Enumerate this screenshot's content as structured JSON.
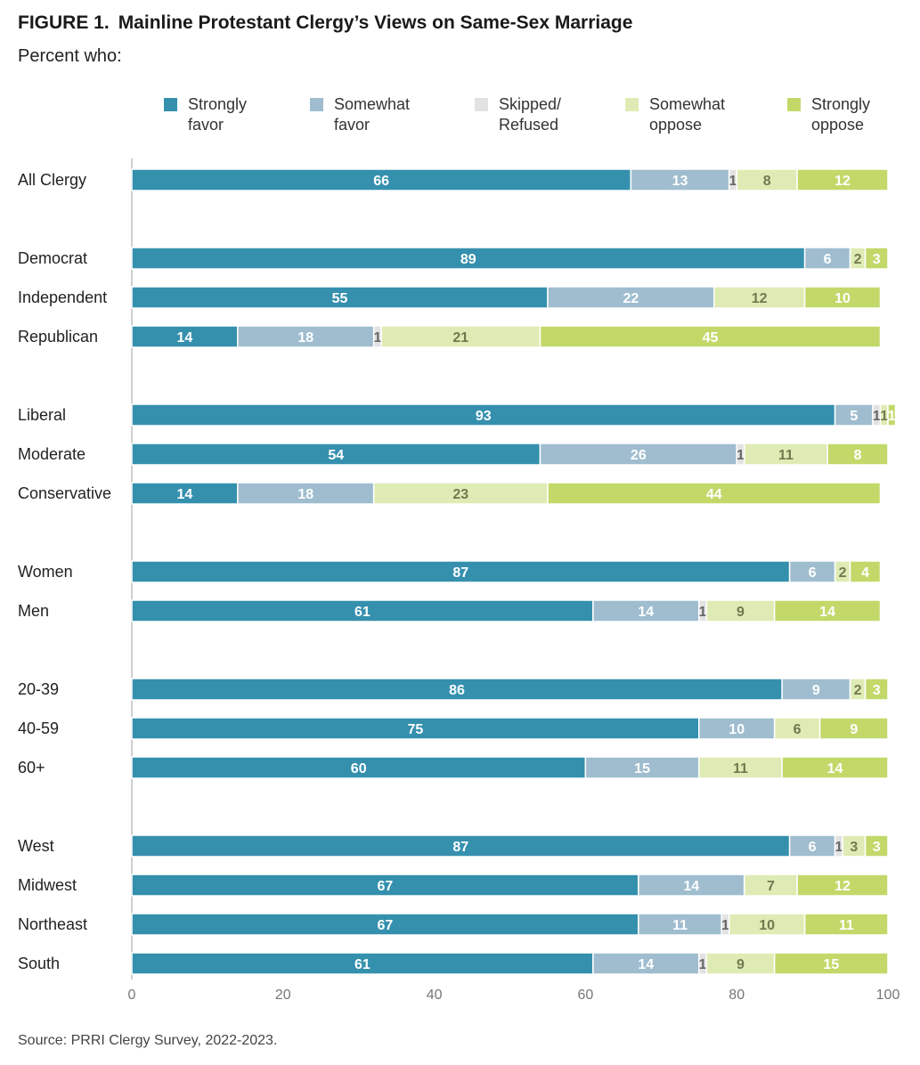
{
  "header": {
    "figure_label": "FIGURE 1.",
    "title": "Mainline Protestant Clergy’s Views on Same-Sex Marriage",
    "subtitle": "Percent who:"
  },
  "source": "Source: PRRI Clergy Survey, 2022-2023.",
  "colors": {
    "strongly_favor": "#3590ae",
    "somewhat_favor": "#9fbdcf",
    "skipped": "#e2e2e2",
    "somewhat_oppose": "#dfebb4",
    "strongly_oppose": "#c2d96a"
  },
  "chart_data": {
    "type": "bar",
    "orientation": "horizontal",
    "stacked": true,
    "title": "Mainline Protestant Clergy’s Views on Same-Sex Marriage",
    "subtitle": "Percent who:",
    "xlim": [
      0,
      100
    ],
    "xticks": [
      0,
      20,
      40,
      60,
      80,
      100
    ],
    "legend_position": "top",
    "categories": [
      "All Clergy",
      "Democrat",
      "Independent",
      "Republican",
      "Liberal",
      "Moderate",
      "Conservative",
      "Women",
      "Men",
      "20-39",
      "40-59",
      "60+",
      "West",
      "Midwest",
      "Northeast",
      "South"
    ],
    "groups": [
      [
        0
      ],
      [
        1,
        2,
        3
      ],
      [
        4,
        5,
        6
      ],
      [
        7,
        8
      ],
      [
        9,
        10,
        11
      ],
      [
        12,
        13,
        14,
        15
      ]
    ],
    "series": [
      {
        "name": "Strongly favor",
        "values": [
          66,
          89,
          55,
          14,
          93,
          54,
          14,
          87,
          61,
          86,
          75,
          60,
          87,
          67,
          67,
          61
        ]
      },
      {
        "name": "Somewhat favor",
        "values": [
          13,
          6,
          22,
          18,
          5,
          26,
          18,
          6,
          14,
          9,
          10,
          15,
          6,
          14,
          11,
          14
        ]
      },
      {
        "name": "Skipped/ Refused",
        "values": [
          1,
          null,
          null,
          1,
          1,
          1,
          null,
          null,
          1,
          null,
          null,
          null,
          1,
          null,
          1,
          1
        ]
      },
      {
        "name": "Somewhat oppose",
        "values": [
          8,
          2,
          12,
          21,
          1,
          11,
          23,
          2,
          9,
          2,
          6,
          11,
          3,
          7,
          10,
          9
        ]
      },
      {
        "name": "Strongly oppose",
        "values": [
          12,
          3,
          10,
          45,
          1,
          8,
          44,
          4,
          14,
          3,
          9,
          14,
          3,
          12,
          11,
          15
        ]
      }
    ]
  }
}
